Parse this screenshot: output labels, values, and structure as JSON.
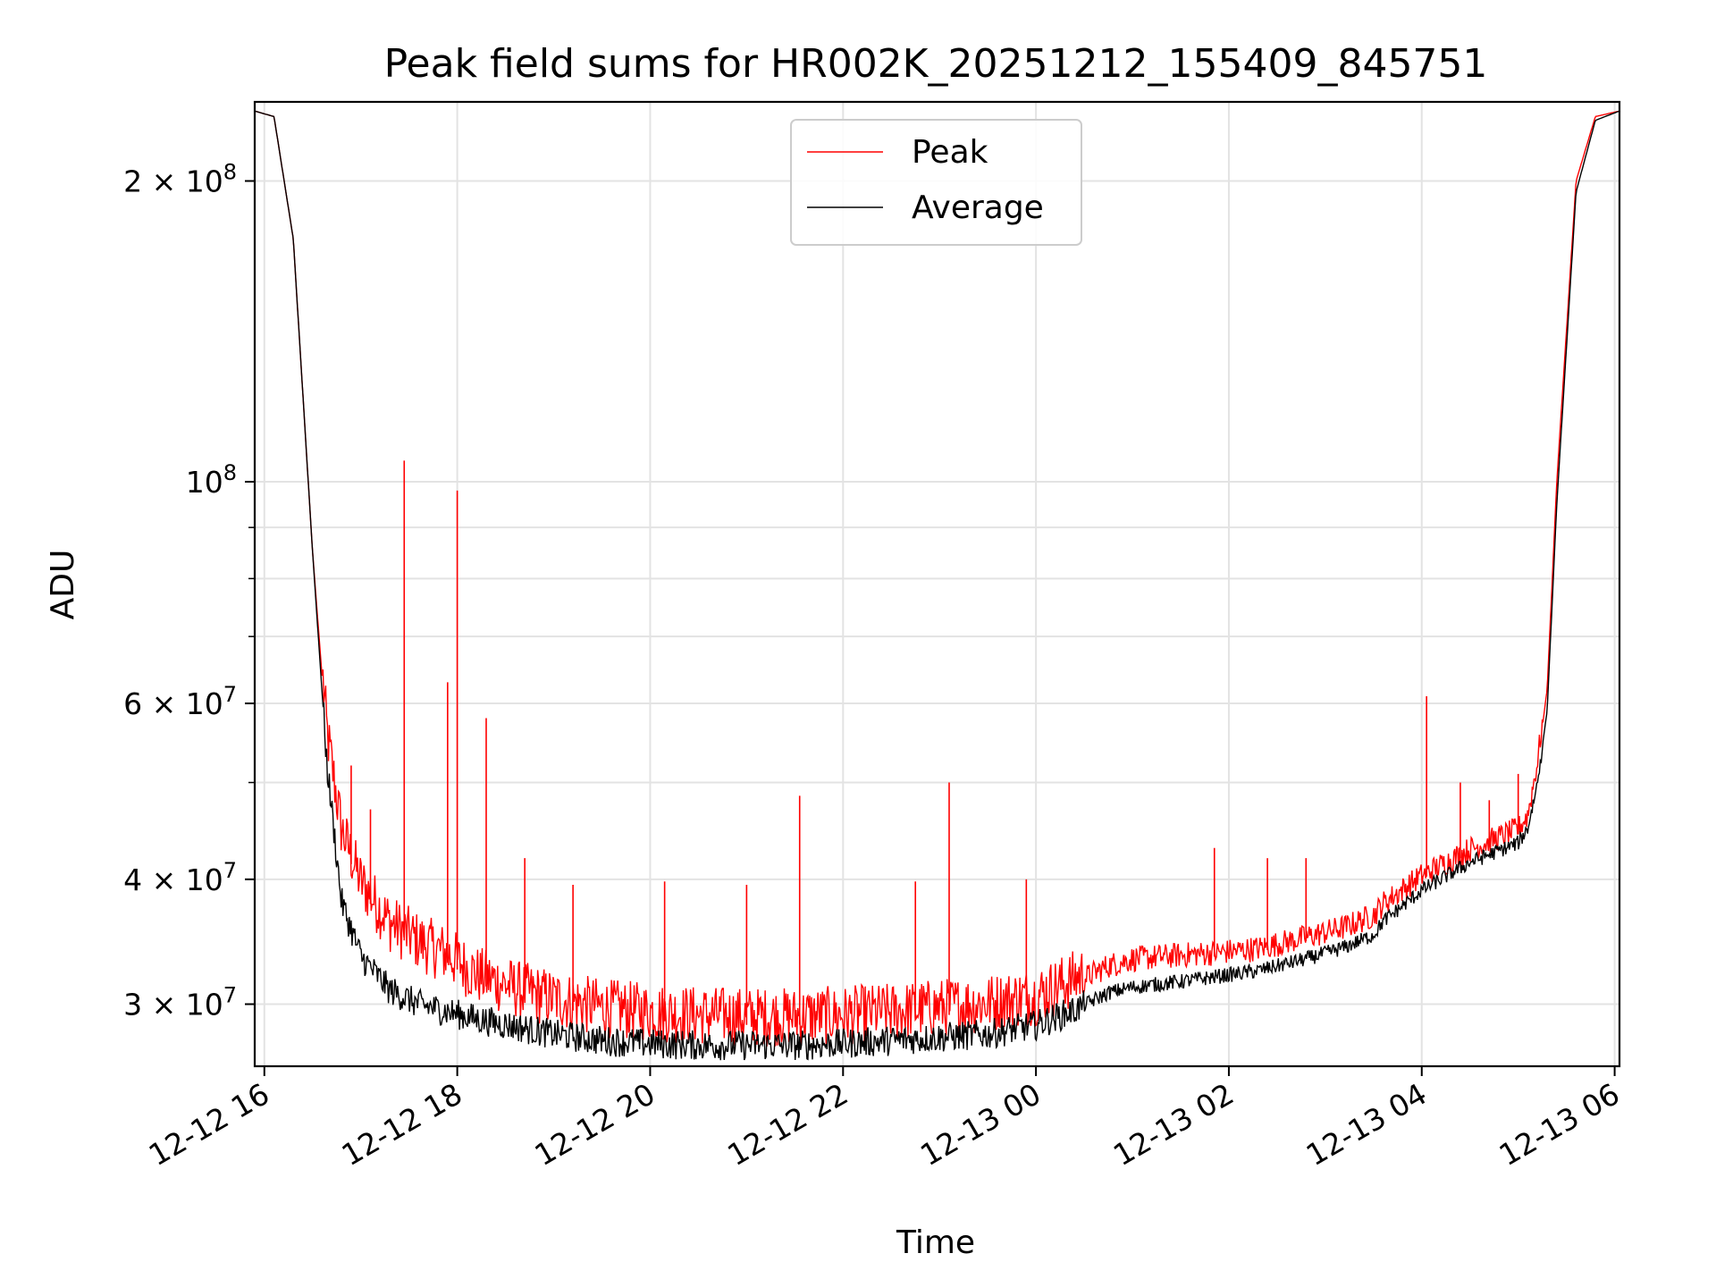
{
  "chart_data": {
    "type": "line",
    "title": "Peak field sums for HR002K_20251212_155409_845751",
    "xlabel": "Time",
    "ylabel": "ADU",
    "yscale": "log",
    "xlim_hours": [
      15.9,
      30.05
    ],
    "ylim": [
      26000000,
      240000000
    ],
    "grid": true,
    "legend_position": "upper center",
    "legend": [
      "Peak",
      "Average"
    ],
    "x_ticks": [
      {
        "hour": 16,
        "label": "12-12 16"
      },
      {
        "hour": 18,
        "label": "12-12 18"
      },
      {
        "hour": 20,
        "label": "12-12 20"
      },
      {
        "hour": 22,
        "label": "12-12 22"
      },
      {
        "hour": 24,
        "label": "12-13 00"
      },
      {
        "hour": 26,
        "label": "12-13 02"
      },
      {
        "hour": 28,
        "label": "12-13 04"
      },
      {
        "hour": 30,
        "label": "12-13 06"
      }
    ],
    "y_major_ticks": [
      {
        "value": 30000000,
        "mant": "3",
        "exp": "7"
      },
      {
        "value": 40000000,
        "mant": "4",
        "exp": "7"
      },
      {
        "value": 60000000,
        "mant": "6",
        "exp": "7"
      },
      {
        "value": 100000000,
        "mant": "",
        "exp": "8"
      },
      {
        "value": 200000000,
        "mant": "2",
        "exp": "8"
      }
    ],
    "y_minor_grid": [
      50000000,
      70000000,
      80000000,
      90000000
    ],
    "series": [
      {
        "name": "Peak",
        "color": "#ff0000",
        "x_hours": [
          15.9,
          16.1,
          16.3,
          16.5,
          16.65,
          16.8,
          17.0,
          17.3,
          17.6,
          17.9,
          18.2,
          18.6,
          19.0,
          19.5,
          20.0,
          20.5,
          21.0,
          21.5,
          22.0,
          22.5,
          23.0,
          23.5,
          24.0,
          24.4,
          24.75,
          25.0,
          25.5,
          25.9,
          26.3,
          26.8,
          27.2,
          27.5,
          27.6,
          28.0,
          28.5,
          29.0,
          29.1,
          29.2,
          29.3,
          29.4,
          29.6,
          29.8,
          30.05
        ],
        "values": [
          235000000,
          232000000,
          175000000,
          85000000,
          55000000,
          44000000,
          39000000,
          35500000,
          34000000,
          33000000,
          31500000,
          30500000,
          29800000,
          29200000,
          28900000,
          28700000,
          28600000,
          28600000,
          28700000,
          28900000,
          29200000,
          29500000,
          30000000,
          31200000,
          32500000,
          33000000,
          33300000,
          33500000,
          33800000,
          34700000,
          35500000,
          36500000,
          37500000,
          40000000,
          42500000,
          44500000,
          46000000,
          52000000,
          62000000,
          100000000,
          200000000,
          232000000,
          235000000
        ]
      },
      {
        "name": "Average",
        "color": "#000000",
        "x_hours": [
          15.9,
          16.1,
          16.3,
          16.5,
          16.65,
          16.8,
          17.0,
          17.3,
          17.6,
          17.9,
          18.2,
          18.6,
          19.0,
          19.5,
          20.0,
          20.5,
          21.0,
          21.5,
          22.0,
          22.5,
          23.0,
          23.5,
          24.0,
          24.4,
          24.75,
          25.0,
          25.5,
          25.9,
          26.3,
          26.8,
          27.2,
          27.5,
          27.6,
          28.0,
          28.5,
          29.0,
          29.1,
          29.2,
          29.3,
          29.4,
          29.6,
          29.8,
          30.05
        ],
        "values": [
          235000000,
          232000000,
          175000000,
          85000000,
          52000000,
          38000000,
          33500000,
          31000000,
          30000000,
          29500000,
          29000000,
          28500000,
          28000000,
          27600000,
          27400000,
          27300000,
          27300000,
          27300000,
          27400000,
          27600000,
          27800000,
          28000000,
          28600000,
          29600000,
          30800000,
          31200000,
          31600000,
          32000000,
          32400000,
          33300000,
          34200000,
          35200000,
          36300000,
          39000000,
          41600000,
          43500000,
          45000000,
          50000000,
          59000000,
          95000000,
          195000000,
          230000000,
          235000000
        ]
      }
    ],
    "spikes": [
      {
        "hour": 16.9,
        "value": 52000000
      },
      {
        "hour": 17.1,
        "value": 47000000
      },
      {
        "hour": 17.45,
        "value": 105000000
      },
      {
        "hour": 17.9,
        "value": 63000000
      },
      {
        "hour": 18.0,
        "value": 98000000
      },
      {
        "hour": 18.3,
        "value": 58000000
      },
      {
        "hour": 18.7,
        "value": 42000000
      },
      {
        "hour": 19.2,
        "value": 39500000
      },
      {
        "hour": 20.15,
        "value": 39800000
      },
      {
        "hour": 21.0,
        "value": 39500000
      },
      {
        "hour": 21.55,
        "value": 48500000
      },
      {
        "hour": 22.75,
        "value": 39800000
      },
      {
        "hour": 23.1,
        "value": 50000000
      },
      {
        "hour": 23.9,
        "value": 40000000
      },
      {
        "hour": 25.85,
        "value": 43000000
      },
      {
        "hour": 26.4,
        "value": 42000000
      },
      {
        "hour": 26.8,
        "value": 42000000
      },
      {
        "hour": 28.05,
        "value": 61000000
      },
      {
        "hour": 28.4,
        "value": 50000000
      },
      {
        "hour": 28.7,
        "value": 48000000
      },
      {
        "hour": 29.0,
        "value": 51000000
      }
    ]
  }
}
